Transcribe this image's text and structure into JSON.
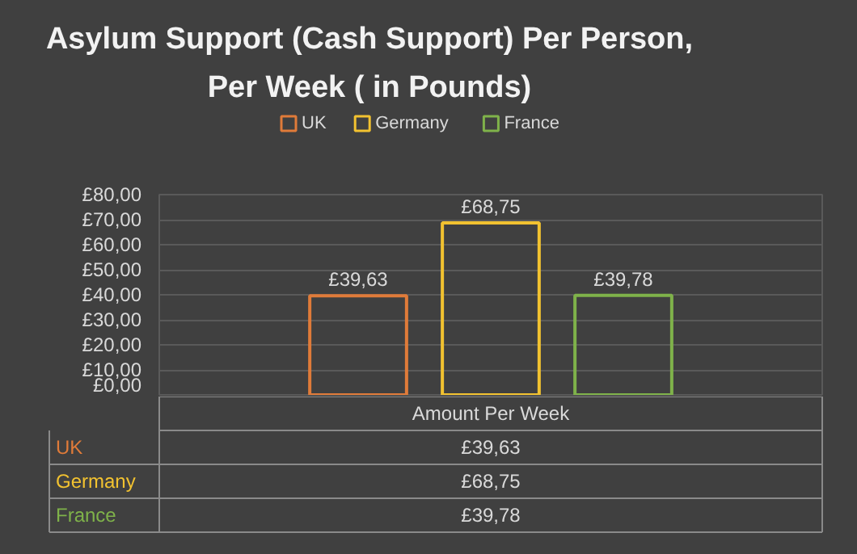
{
  "chart_data": {
    "type": "bar",
    "title": "Asylum Support (Cash Support) Per Person, Per Week ( in Pounds)",
    "categories": [
      "Amount Per Week"
    ],
    "series": [
      {
        "name": "UK",
        "color": "#e07b39",
        "values": [
          39.63
        ],
        "value_labels": [
          "£39,63"
        ]
      },
      {
        "name": "Germany",
        "color": "#f2c230",
        "values": [
          68.75
        ],
        "value_labels": [
          "£68,75"
        ]
      },
      {
        "name": "France",
        "color": "#7fb24a",
        "values": [
          39.78
        ],
        "value_labels": [
          "£39,78"
        ]
      }
    ],
    "ylim": [
      0,
      80
    ],
    "yticks": [
      {
        "value": 0,
        "label": "£0,00"
      },
      {
        "value": 10,
        "label": "£10,00"
      },
      {
        "value": 20,
        "label": "£20,00"
      },
      {
        "value": 30,
        "label": "£30,00"
      },
      {
        "value": 40,
        "label": "£40,00"
      },
      {
        "value": 50,
        "label": "£50,00"
      },
      {
        "value": 60,
        "label": "£60,00"
      },
      {
        "value": 70,
        "label": "£70,00"
      },
      {
        "value": 80,
        "label": "£80,00"
      }
    ],
    "grid": "y",
    "legend": "top"
  }
}
